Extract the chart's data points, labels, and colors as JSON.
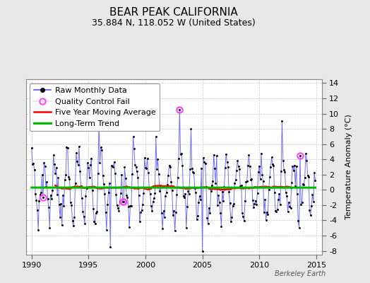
{
  "title": "BEAR PEAK CALIFORNIA",
  "subtitle": "35.884 N, 118.052 W (United States)",
  "ylabel": "Temperature Anomaly (°C)",
  "watermark": "Berkeley Earth",
  "ylim": [
    -8.5,
    14.5
  ],
  "xlim": [
    1989.5,
    2015.5
  ],
  "yticks": [
    -8,
    -6,
    -4,
    -2,
    0,
    2,
    4,
    6,
    8,
    10,
    12,
    14
  ],
  "xticks": [
    1990,
    1995,
    2000,
    2005,
    2010,
    2015
  ],
  "bg_color": "#e8e8e8",
  "plot_bg_color": "#ffffff",
  "line_color": "#5555ff",
  "dot_color": "#000000",
  "ma_color": "#ff0000",
  "trend_color": "#00bb00",
  "qc_color": "#ff44ff",
  "grid_color": "#bbbbbb",
  "title_fontsize": 11,
  "subtitle_fontsize": 9,
  "tick_fontsize": 8,
  "legend_fontsize": 8
}
